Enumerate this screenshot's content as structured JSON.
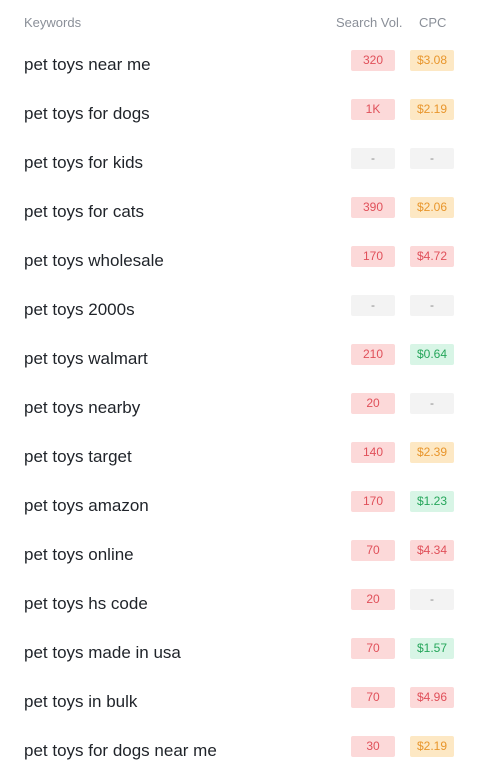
{
  "header": {
    "keywords_label": "Keywords",
    "volume_label": "Search Vol.",
    "cpc_label": "CPC"
  },
  "rows": [
    {
      "keyword": "pet toys near me",
      "volume": "320",
      "volume_level": "red",
      "cpc": "$3.08",
      "cpc_level": "orange"
    },
    {
      "keyword": "pet toys for dogs",
      "volume": "1K",
      "volume_level": "red",
      "cpc": "$2.19",
      "cpc_level": "orange"
    },
    {
      "keyword": "pet toys for kids",
      "volume": "-",
      "volume_level": "grey",
      "cpc": "-",
      "cpc_level": "grey"
    },
    {
      "keyword": "pet toys for cats",
      "volume": "390",
      "volume_level": "red",
      "cpc": "$2.06",
      "cpc_level": "orange"
    },
    {
      "keyword": "pet toys wholesale",
      "volume": "170",
      "volume_level": "red",
      "cpc": "$4.72",
      "cpc_level": "red"
    },
    {
      "keyword": "pet toys 2000s",
      "volume": "-",
      "volume_level": "grey",
      "cpc": "-",
      "cpc_level": "grey"
    },
    {
      "keyword": "pet toys walmart",
      "volume": "210",
      "volume_level": "red",
      "cpc": "$0.64",
      "cpc_level": "green"
    },
    {
      "keyword": "pet toys nearby",
      "volume": "20",
      "volume_level": "red",
      "cpc": "-",
      "cpc_level": "grey"
    },
    {
      "keyword": "pet toys target",
      "volume": "140",
      "volume_level": "red",
      "cpc": "$2.39",
      "cpc_level": "orange"
    },
    {
      "keyword": "pet toys amazon",
      "volume": "170",
      "volume_level": "red",
      "cpc": "$1.23",
      "cpc_level": "green"
    },
    {
      "keyword": "pet toys online",
      "volume": "70",
      "volume_level": "red",
      "cpc": "$4.34",
      "cpc_level": "red"
    },
    {
      "keyword": "pet toys hs code",
      "volume": "20",
      "volume_level": "red",
      "cpc": "-",
      "cpc_level": "grey"
    },
    {
      "keyword": "pet toys made in usa",
      "volume": "70",
      "volume_level": "red",
      "cpc": "$1.57",
      "cpc_level": "green"
    },
    {
      "keyword": "pet toys in bulk",
      "volume": "70",
      "volume_level": "red",
      "cpc": "$4.96",
      "cpc_level": "red"
    },
    {
      "keyword": "pet toys for dogs near me",
      "volume": "30",
      "volume_level": "red",
      "cpc": "$2.19",
      "cpc_level": "orange"
    }
  ],
  "colors": {
    "red_bg": "#fcd9d9",
    "red_fg": "#e0505a",
    "orange_bg": "#fde8c4",
    "orange_fg": "#e8962c",
    "green_bg": "#d8f5e6",
    "green_fg": "#26a65b",
    "grey_bg": "#f3f3f3",
    "grey_fg": "#8a8a8a"
  }
}
